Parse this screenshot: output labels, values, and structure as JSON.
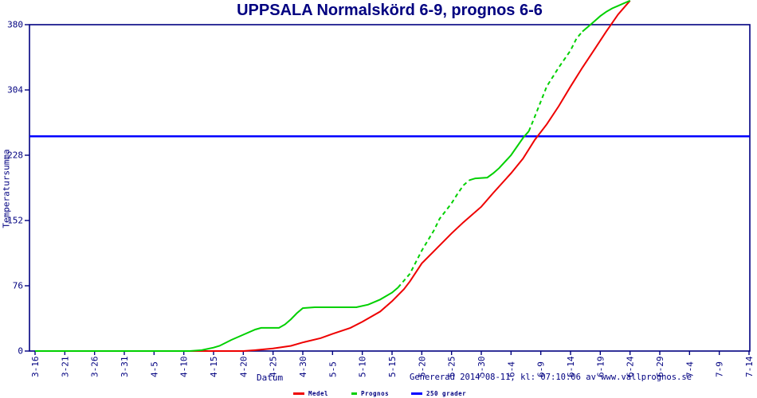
{
  "title": "UPPSALA Normalskörd 6-9, prognos 6-6",
  "footer": "Genererad 2014-08-11, kl: 07:10:06 av www.vallprognos.se",
  "chart_data": {
    "type": "line",
    "title": "UPPSALA Normalskörd 6-9, prognos 6-6",
    "xlabel": "Datum",
    "ylabel": "Temperatursumma",
    "x_unit": "days since 3-16",
    "xlim": [
      0,
      120
    ],
    "ylim": [
      0,
      380
    ],
    "grid": false,
    "legend_position": "bottom",
    "y_ticks": [
      0,
      76,
      152,
      228,
      304,
      380
    ],
    "x_ticks": [
      {
        "label": "3-16",
        "day": 0
      },
      {
        "label": "3-21",
        "day": 5
      },
      {
        "label": "3-26",
        "day": 10
      },
      {
        "label": "3-31",
        "day": 15
      },
      {
        "label": "4-5",
        "day": 20
      },
      {
        "label": "4-10",
        "day": 25
      },
      {
        "label": "4-15",
        "day": 30
      },
      {
        "label": "4-20",
        "day": 35
      },
      {
        "label": "4-25",
        "day": 40
      },
      {
        "label": "4-30",
        "day": 45
      },
      {
        "label": "5-5",
        "day": 50
      },
      {
        "label": "5-10",
        "day": 55
      },
      {
        "label": "5-15",
        "day": 60
      },
      {
        "label": "5-20",
        "day": 65
      },
      {
        "label": "5-25",
        "day": 70
      },
      {
        "label": "5-30",
        "day": 75
      },
      {
        "label": "6-4",
        "day": 80
      },
      {
        "label": "6-9",
        "day": 85
      },
      {
        "label": "6-14",
        "day": 90
      },
      {
        "label": "6-19",
        "day": 95
      },
      {
        "label": "6-24",
        "day": 100
      },
      {
        "label": "6-29",
        "day": 105
      },
      {
        "label": "7-4",
        "day": 110
      },
      {
        "label": "7-9",
        "day": 115
      },
      {
        "label": "7-14",
        "day": 120
      }
    ],
    "series": [
      {
        "name": "Medel",
        "color": "#ee0000",
        "dash": false,
        "points": [
          [
            0,
            0
          ],
          [
            35,
            0
          ],
          [
            37,
            1
          ],
          [
            40,
            3
          ],
          [
            43,
            6
          ],
          [
            45,
            10
          ],
          [
            48,
            15
          ],
          [
            50,
            20
          ],
          [
            53,
            27
          ],
          [
            55,
            34
          ],
          [
            58,
            46
          ],
          [
            60,
            58
          ],
          [
            62,
            72
          ],
          [
            63,
            81
          ],
          [
            65,
            102
          ],
          [
            67,
            116
          ],
          [
            70,
            137
          ],
          [
            72,
            150
          ],
          [
            75,
            168
          ],
          [
            77,
            184
          ],
          [
            80,
            207
          ],
          [
            82,
            224
          ],
          [
            84,
            246
          ],
          [
            86,
            264
          ],
          [
            88,
            285
          ],
          [
            90,
            308
          ],
          [
            92,
            330
          ],
          [
            94,
            351
          ],
          [
            96,
            372
          ],
          [
            98,
            392
          ],
          [
            100,
            408
          ]
        ]
      },
      {
        "name": "Prognos",
        "color": "#00d000",
        "segments": [
          {
            "dash": false,
            "points": [
              [
                0,
                0
              ],
              [
                26,
                0
              ],
              [
                28,
                1
              ],
              [
                30,
                4
              ],
              [
                31,
                6
              ],
              [
                33,
                13
              ],
              [
                35,
                19
              ],
              [
                37,
                25
              ],
              [
                38,
                27
              ],
              [
                41,
                27
              ],
              [
                42,
                31
              ],
              [
                43,
                37
              ],
              [
                44,
                44
              ],
              [
                45,
                50
              ],
              [
                47,
                51
              ],
              [
                54,
                51
              ],
              [
                56,
                54
              ],
              [
                58,
                60
              ],
              [
                60,
                68
              ],
              [
                61,
                74
              ]
            ]
          },
          {
            "dash": true,
            "points": [
              [
                61,
                74
              ],
              [
                63,
                90
              ],
              [
                65,
                117
              ],
              [
                67,
                140
              ],
              [
                68,
                154
              ],
              [
                70,
                172
              ],
              [
                71,
                183
              ],
              [
                72,
                193
              ],
              [
                73,
                199
              ]
            ]
          },
          {
            "dash": false,
            "points": [
              [
                73,
                199
              ],
              [
                74,
                201
              ],
              [
                76,
                202
              ],
              [
                77,
                207
              ],
              [
                78,
                213
              ],
              [
                80,
                228
              ],
              [
                82,
                248
              ],
              [
                83,
                256
              ]
            ]
          },
          {
            "dash": true,
            "points": [
              [
                83,
                256
              ],
              [
                84,
                273
              ],
              [
                86,
                308
              ],
              [
                88,
                330
              ],
              [
                90,
                350
              ],
              [
                91,
                364
              ],
              [
                92,
                372
              ]
            ]
          },
          {
            "dash": false,
            "points": [
              [
                92,
                372
              ],
              [
                93,
                378
              ],
              [
                94,
                384
              ],
              [
                95,
                390
              ],
              [
                96,
                395
              ],
              [
                97,
                399
              ],
              [
                98,
                402
              ],
              [
                99,
                405
              ],
              [
                100,
                408
              ]
            ]
          }
        ]
      },
      {
        "name": "250 grader",
        "color": "#0000ff",
        "dash": false,
        "horizontal_value": 250
      }
    ],
    "legend": {
      "items": [
        {
          "label": "Medel",
          "color": "#ee0000",
          "dash": false
        },
        {
          "label": "Prognos",
          "color": "#00d000",
          "dash": true
        },
        {
          "label": "250 grader",
          "color": "#0000ff",
          "dash": false
        }
      ]
    },
    "colors": {
      "axis": "#000080",
      "background": "#ffffff"
    }
  }
}
